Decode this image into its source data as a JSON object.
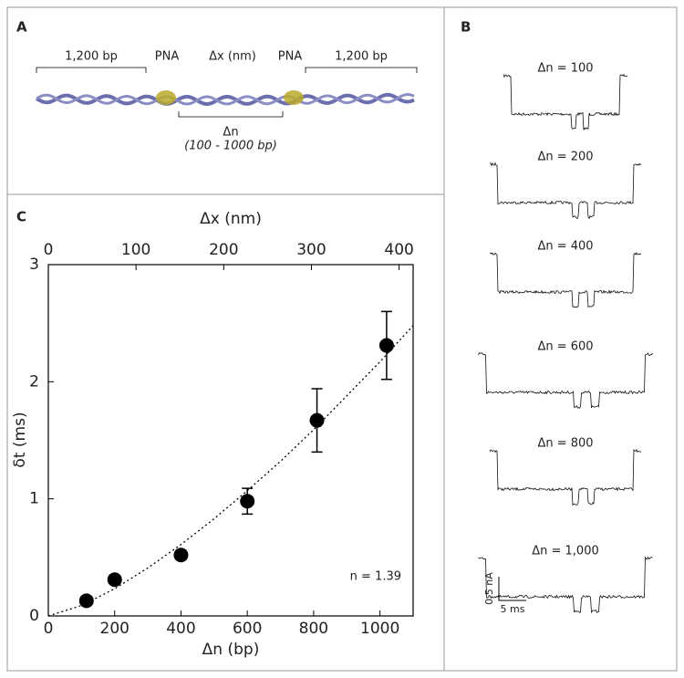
{
  "panel_a": {
    "label": "A",
    "left_segment": "1,200 bp",
    "left_pna": "PNA",
    "spacing": "Δx (nm)",
    "right_pna": "PNA",
    "right_segment": "1,200 bp",
    "insert": "Δn",
    "insert_range": "(100 - 1000 bp)"
  },
  "panel_b": {
    "label": "B",
    "traces": [
      "Δn = 100",
      "Δn = 200",
      "Δn = 400",
      "Δn = 600",
      "Δn = 800",
      "Δn = 1,000"
    ],
    "scale_current": "0.5 nA",
    "scale_time": "5 ms"
  },
  "panel_c": {
    "label": "C"
  },
  "chart_data": {
    "type": "scatter",
    "xlabel": "Δn (bp)",
    "ylabel": "δt (ms)",
    "x2label": "Δx (nm)",
    "annotation": "n = 1.39",
    "x": [
      115,
      200,
      400,
      600,
      810,
      1020
    ],
    "values": [
      0.13,
      0.31,
      0.52,
      0.98,
      1.67,
      2.31
    ],
    "errors": [
      0.02,
      0.02,
      0.04,
      0.11,
      0.27,
      0.29
    ],
    "color": "#000000",
    "fit_x": [
      0,
      100,
      200,
      300,
      400,
      500,
      600,
      700,
      800,
      900,
      1000,
      1100
    ],
    "fit_values": [
      0,
      0.089,
      0.232,
      0.41,
      0.61,
      0.83,
      1.07,
      1.32,
      1.59,
      1.88,
      2.17,
      2.48
    ],
    "xlim": [
      0,
      1100
    ],
    "xticks": [
      0,
      200,
      400,
      600,
      800,
      1000
    ],
    "x2lim": [
      0,
      416
    ],
    "x2ticks": [
      0,
      100,
      200,
      300,
      400
    ],
    "ylim": [
      0,
      3
    ],
    "yticks": [
      0,
      1,
      2,
      3
    ]
  }
}
